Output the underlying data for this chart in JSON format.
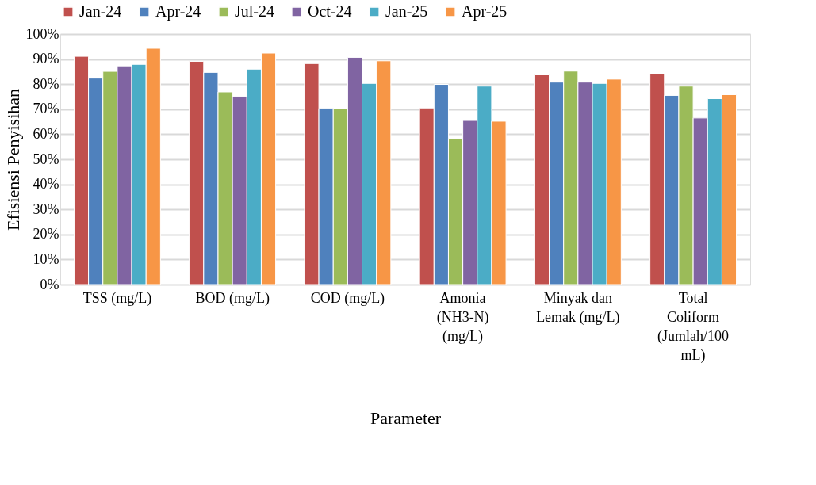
{
  "chart_data": {
    "type": "bar",
    "xlabel": "Parameter",
    "ylabel": "Efisiensi Penyisihan",
    "categories": [
      "TSS (mg/L)",
      "BOD (mg/L)",
      "COD (mg/L)",
      "Amonia (NH3-N) (mg/L)",
      "Minyak dan Lemak (mg/L)",
      "Total Coliform (Jumlah/100 mL)"
    ],
    "series": [
      {
        "name": "Jan-24",
        "color": "#c0504d",
        "values": [
          91.1,
          89.1,
          88.2,
          70.5,
          83.7,
          84.2
        ]
      },
      {
        "name": "Apr-24",
        "color": "#4f81bd",
        "values": [
          82.4,
          84.7,
          70.3,
          79.9,
          80.8,
          75.5
        ]
      },
      {
        "name": "Jul-24",
        "color": "#9bbb59",
        "values": [
          85.1,
          76.9,
          70.2,
          58.4,
          85.2,
          79.2
        ]
      },
      {
        "name": "Oct-24",
        "color": "#8064a2",
        "values": [
          87.3,
          75.1,
          90.7,
          65.5,
          80.8,
          66.5
        ]
      },
      {
        "name": "Jan-25",
        "color": "#4bacc6",
        "values": [
          87.9,
          86.0,
          80.3,
          79.2,
          80.3,
          74.2
        ]
      },
      {
        "name": "Apr-25",
        "color": "#f79646",
        "values": [
          94.3,
          92.4,
          89.3,
          65.2,
          82.0,
          75.8
        ]
      }
    ],
    "ylim": [
      0,
      100
    ],
    "yticks": [
      {
        "value": 0,
        "label": "0%"
      },
      {
        "value": 10,
        "label": "10%"
      },
      {
        "value": 20,
        "label": "20%"
      },
      {
        "value": 30,
        "label": "30%"
      },
      {
        "value": 40,
        "label": "40%"
      },
      {
        "value": 50,
        "label": "50%"
      },
      {
        "value": 60,
        "label": "60%"
      },
      {
        "value": 70,
        "label": "70%"
      },
      {
        "value": 80,
        "label": "80%"
      },
      {
        "value": 90,
        "label": "90%"
      },
      {
        "value": 100,
        "label": "100%"
      }
    ],
    "grid": "y",
    "legend": "top"
  }
}
